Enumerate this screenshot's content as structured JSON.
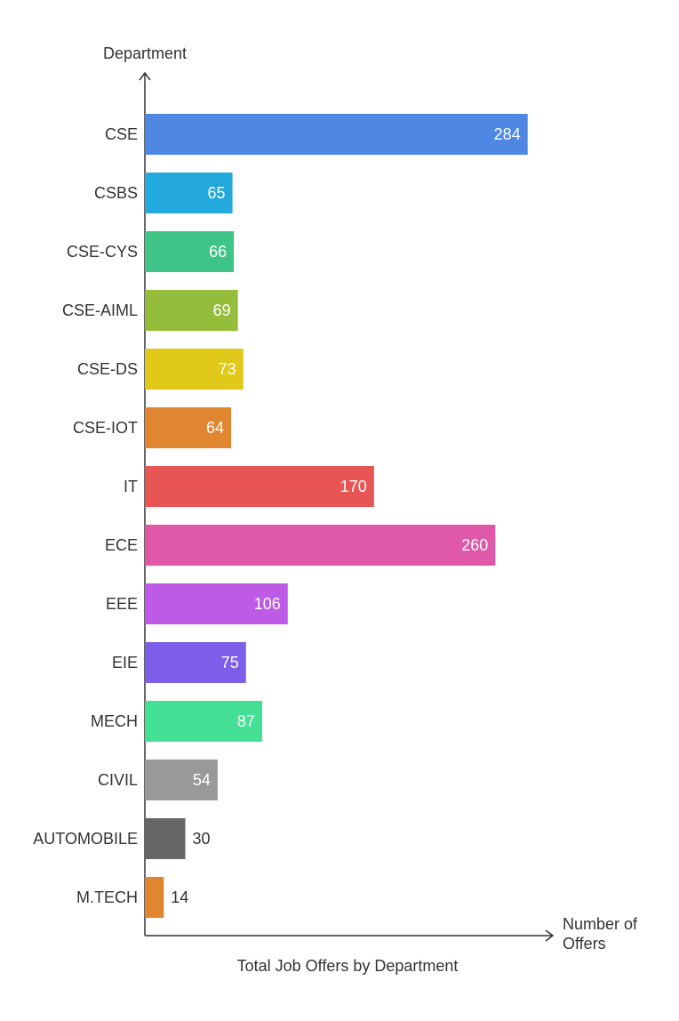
{
  "chart_data": {
    "type": "hbar",
    "title": "Total Job Offers by Department",
    "y_label": "Department",
    "x_label": "Number of Offers",
    "categories": [
      "CSE",
      "CSBS",
      "CSE-CYS",
      "CSE-AIML",
      "CSE-DS",
      "CSE-IOT",
      "IT",
      "ECE",
      "EEE",
      "EIE",
      "MECH",
      "CIVIL",
      "AUTOMOBILE",
      "M.TECH"
    ],
    "values": [
      284,
      65,
      66,
      69,
      73,
      64,
      170,
      260,
      106,
      75,
      87,
      54,
      30,
      14
    ],
    "colors": [
      "#4f88e3",
      "#23a9dc",
      "#3ec487",
      "#93bd3a",
      "#e0c918",
      "#e08530",
      "#e85555",
      "#e058a8",
      "#bd5ae6",
      "#7d5ee8",
      "#43e095",
      "#999999",
      "#666666",
      "#e08530"
    ],
    "xlim": [
      0,
      300
    ]
  }
}
